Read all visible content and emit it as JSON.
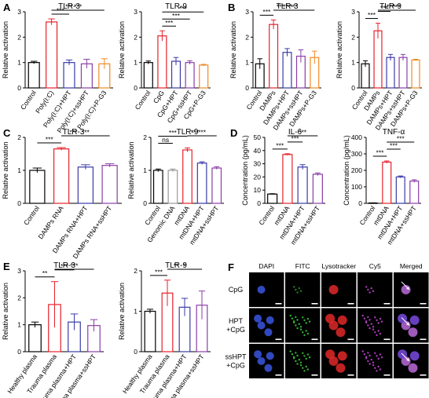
{
  "chart_data": [
    {
      "id": "A1",
      "panel_letter": "A",
      "type": "bar",
      "title": "TLR-3",
      "ylabel": "Relative activation",
      "ylim": [
        0,
        3
      ],
      "yticks": [
        0,
        1,
        2,
        3
      ],
      "categories": [
        "Control",
        "Poly(I:C)",
        "Poly(I:C)+HPT",
        "Poly(I:C)+ssHPT",
        "Poly(I:C)+P-G3"
      ],
      "values": [
        1.0,
        2.6,
        1.0,
        0.95,
        0.95
      ],
      "errors": [
        0.05,
        0.12,
        0.1,
        0.18,
        0.2
      ],
      "colors": [
        "#000000",
        "#e8202a",
        "#3a3aa8",
        "#8a3ea8",
        "#f08a24"
      ],
      "sig": [
        {
          "a": 1,
          "b": 2,
          "label": "***"
        },
        {
          "a": 1,
          "b": 3,
          "label": "***"
        },
        {
          "a": 1,
          "b": 4,
          "label": "***"
        }
      ]
    },
    {
      "id": "A2",
      "panel_letter": "",
      "type": "bar",
      "title": "TLR-9",
      "ylabel": "Relative activation",
      "ylim": [
        0,
        3
      ],
      "yticks": [
        0,
        1,
        2,
        3
      ],
      "categories": [
        "Control",
        "CpG",
        "CpG+HPT",
        "CpG+ssHPT",
        "CpG+P-G3"
      ],
      "values": [
        1.0,
        2.05,
        1.05,
        1.0,
        0.9
      ],
      "errors": [
        0.06,
        0.2,
        0.15,
        0.07,
        0.03
      ],
      "colors": [
        "#000000",
        "#e8202a",
        "#3a3aa8",
        "#8a3ea8",
        "#f08a24"
      ],
      "sig": [
        {
          "a": 1,
          "b": 2,
          "label": "***"
        },
        {
          "a": 1,
          "b": 3,
          "label": "***"
        },
        {
          "a": 1,
          "b": 4,
          "label": "***"
        }
      ]
    },
    {
      "id": "B1",
      "panel_letter": "B",
      "type": "bar",
      "title": "TLR-3",
      "ylabel": "Relative activation",
      "ylim": [
        0,
        3
      ],
      "yticks": [
        0,
        1,
        2,
        3
      ],
      "categories": [
        "Control",
        "DAMPs",
        "DAMPs+HPT",
        "DAMPs+ssHPT",
        "DAMPs+P-G3"
      ],
      "values": [
        0.95,
        2.5,
        1.4,
        1.25,
        1.2
      ],
      "errors": [
        0.2,
        0.18,
        0.15,
        0.25,
        0.25
      ],
      "colors": [
        "#000000",
        "#e8202a",
        "#3a3aa8",
        "#8a3ea8",
        "#f08a24"
      ],
      "sig": [
        {
          "a": 0,
          "b": 1,
          "label": "***"
        },
        {
          "a": 1,
          "b": 2,
          "label": "***"
        },
        {
          "a": 1,
          "b": 3,
          "label": "***"
        },
        {
          "a": 1,
          "b": 4,
          "label": "***"
        }
      ]
    },
    {
      "id": "B2",
      "panel_letter": "",
      "type": "bar",
      "title": "TLR-9",
      "ylabel": "Relative activation",
      "ylim": [
        0,
        3
      ],
      "yticks": [
        0,
        1,
        2,
        3
      ],
      "categories": [
        "Control",
        "DAMPs",
        "DAMPs+HPT",
        "DAMPs+ssHPT",
        "DAMPs+P-G3"
      ],
      "values": [
        0.95,
        2.25,
        1.2,
        1.2,
        1.1
      ],
      "errors": [
        0.12,
        0.3,
        0.12,
        0.12,
        0.03
      ],
      "colors": [
        "#000000",
        "#e8202a",
        "#3a3aa8",
        "#8a3ea8",
        "#f08a24"
      ],
      "sig": [
        {
          "a": 0,
          "b": 1,
          "label": "***"
        },
        {
          "a": 1,
          "b": 2,
          "label": "***"
        },
        {
          "a": 1,
          "b": 3,
          "label": "***"
        },
        {
          "a": 1,
          "b": 4,
          "label": "***"
        }
      ]
    },
    {
      "id": "C1",
      "panel_letter": "C",
      "type": "bar",
      "title": "TLR-3",
      "ylabel": "Relative activation",
      "ylim": [
        0,
        2
      ],
      "yticks": [
        0,
        1,
        2
      ],
      "categories": [
        "Control",
        "DAMPs RNA",
        "DAMPs RNA+HPT",
        "DAMPs RNA+ssHPT"
      ],
      "values": [
        1.0,
        1.65,
        1.1,
        1.15
      ],
      "errors": [
        0.07,
        0.04,
        0.07,
        0.05
      ],
      "colors": [
        "#000000",
        "#e8202a",
        "#3a3aa8",
        "#8a3ea8"
      ],
      "sig": [
        {
          "a": 0,
          "b": 1,
          "label": "***"
        },
        {
          "a": 1,
          "b": 2,
          "label": "***"
        },
        {
          "a": 1,
          "b": 3,
          "label": "***"
        }
      ]
    },
    {
      "id": "C2",
      "panel_letter": "",
      "type": "bar",
      "title": "TLR-9",
      "ylabel": "Relative activation",
      "ylim": [
        0,
        2
      ],
      "yticks": [
        0,
        1,
        2
      ],
      "categories": [
        "Control",
        "Genomic DNA",
        "mtDNA",
        "mtDNA+HPT",
        "mtDNA+ssHPT"
      ],
      "values": [
        1.0,
        1.0,
        1.62,
        1.22,
        1.07
      ],
      "errors": [
        0.04,
        0.04,
        0.06,
        0.04,
        0.04
      ],
      "colors": [
        "#000000",
        "#999999",
        "#e8202a",
        "#3a3aa8",
        "#8a3ea8"
      ],
      "sig": [
        {
          "a": 0,
          "b": 1,
          "label": "ns"
        },
        {
          "a": 0,
          "b": 2,
          "label": "***"
        },
        {
          "a": 2,
          "b": 3,
          "label": "***"
        },
        {
          "a": 2,
          "b": 4,
          "label": "***"
        }
      ]
    },
    {
      "id": "D1",
      "panel_letter": "D",
      "type": "bar",
      "title": "IL-6",
      "ylabel": "Concentration (pg/mL)",
      "ylim": [
        0,
        50
      ],
      "yticks": [
        0,
        10,
        20,
        30,
        40,
        50
      ],
      "categories": [
        "Control",
        "mtDNA",
        "mtDNA+HPT",
        "mtDNA+ssHPT"
      ],
      "values": [
        7,
        37,
        27.5,
        22
      ],
      "errors": [
        0.3,
        0.6,
        1.8,
        1.0
      ],
      "colors": [
        "#000000",
        "#e8202a",
        "#3a3aa8",
        "#8a3ea8"
      ],
      "sig": [
        {
          "a": 0,
          "b": 1,
          "label": "***"
        },
        {
          "a": 1,
          "b": 2,
          "label": "***"
        },
        {
          "a": 1,
          "b": 3,
          "label": "***"
        }
      ]
    },
    {
      "id": "D2",
      "panel_letter": "",
      "type": "bar",
      "title": "TNF-α",
      "ylabel": "Concentration (pg/mL)",
      "ylim": [
        0,
        400
      ],
      "yticks": [
        0,
        100,
        200,
        300,
        400
      ],
      "categories": [
        "Control",
        "mtDNA",
        "mtDNA+HPT",
        "mtDNA+ssHPT"
      ],
      "values": [
        2,
        250,
        160,
        135
      ],
      "errors": [
        1,
        7,
        6,
        8
      ],
      "colors": [
        "#000000",
        "#e8202a",
        "#3a3aa8",
        "#8a3ea8"
      ],
      "sig": [
        {
          "a": 0,
          "b": 1,
          "label": "***"
        },
        {
          "a": 1,
          "b": 2,
          "label": "***"
        },
        {
          "a": 1,
          "b": 3,
          "label": "***"
        }
      ]
    },
    {
      "id": "E1",
      "panel_letter": "E",
      "type": "bar",
      "title": "TLR-3",
      "ylabel": "Relative activation",
      "ylim": [
        0,
        3
      ],
      "yticks": [
        0,
        1,
        2,
        3
      ],
      "categories": [
        "Healthy plasma",
        "Trauma plasma",
        "Trauma plasma+HPT",
        "Trauma plasma+ssHPT"
      ],
      "values": [
        1.0,
        1.75,
        1.1,
        0.97
      ],
      "errors": [
        0.1,
        0.85,
        0.3,
        0.22
      ],
      "colors": [
        "#000000",
        "#e8202a",
        "#3a3aa8",
        "#8a3ea8"
      ],
      "sig": [
        {
          "a": 0,
          "b": 1,
          "label": "**"
        },
        {
          "a": 1,
          "b": 2,
          "label": "***"
        },
        {
          "a": 1,
          "b": 3,
          "label": "***"
        }
      ]
    },
    {
      "id": "E2",
      "panel_letter": "",
      "type": "bar",
      "title": "TLR-9",
      "ylabel": "Relative activation",
      "ylim": [
        0,
        2
      ],
      "yticks": [
        0,
        1,
        2
      ],
      "categories": [
        "Healthy plasma",
        "Trauma plasma",
        "Trauma plasma+HPT",
        "Trauma plasma+ssHPT"
      ],
      "values": [
        1.0,
        1.45,
        1.1,
        1.15
      ],
      "errors": [
        0.05,
        0.32,
        0.22,
        0.35
      ],
      "colors": [
        "#000000",
        "#e8202a",
        "#3a3aa8",
        "#8a3ea8"
      ],
      "sig": [
        {
          "a": 0,
          "b": 1,
          "label": "***"
        },
        {
          "a": 1,
          "b": 2,
          "label": "**"
        },
        {
          "a": 1,
          "b": 3,
          "label": "*"
        }
      ]
    }
  ],
  "microscopy": {
    "panel_letter": "F",
    "columns": [
      "DAPI",
      "FITC",
      "Lysotracker",
      "Cy5",
      "Merged"
    ],
    "rows": [
      {
        "label_lines": [
          "CpG"
        ]
      },
      {
        "label_lines": [
          "HPT",
          "+CpG"
        ]
      },
      {
        "label_lines": [
          "ssHPT",
          "+CpG"
        ]
      }
    ],
    "channel_colors": {
      "DAPI": "#3a56e0",
      "FITC": "#3ad23a",
      "Lysotracker": "#e02828",
      "Cy5": "#c848d8"
    }
  }
}
